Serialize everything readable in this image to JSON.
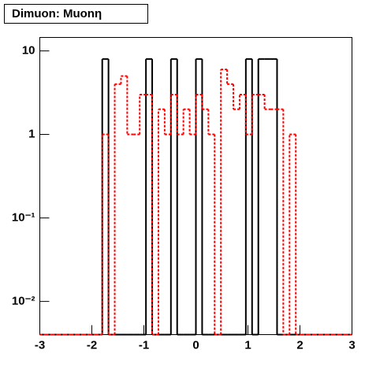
{
  "chart_data": {
    "type": "histogram",
    "title": "Dimuon: Muonη",
    "bins": [
      -3,
      -2.88,
      -2.76,
      -2.64,
      -2.52,
      -2.4,
      -2.28,
      -2.16,
      -2.04,
      -1.92,
      -1.8,
      -1.68,
      -1.56,
      -1.44,
      -1.32,
      -1.2,
      -1.08,
      -0.96,
      -0.84,
      -0.72,
      -0.6,
      -0.48,
      -0.36,
      -0.24,
      -0.12,
      0,
      0.12,
      0.24,
      0.36,
      0.48,
      0.6,
      0.72,
      0.84,
      0.96,
      1.08,
      1.2,
      1.32,
      1.44,
      1.56,
      1.68,
      1.8,
      1.92,
      2.04,
      2.16,
      2.28,
      2.4,
      2.52,
      2.64,
      2.76,
      2.88,
      3
    ],
    "series": [
      {
        "color": "#000000",
        "dash": false,
        "values": [
          0,
          0,
          0,
          0,
          0,
          0,
          0,
          0,
          0,
          0,
          8,
          0,
          0,
          0,
          0,
          0,
          0,
          8,
          0,
          0,
          0,
          8,
          0,
          0,
          0,
          8,
          0,
          0,
          0,
          0,
          0,
          0,
          0,
          8,
          0,
          8,
          8,
          8,
          0,
          0,
          0,
          0,
          0,
          0,
          0,
          0,
          0,
          0,
          0,
          0
        ]
      },
      {
        "color": "#ff0000",
        "dash": true,
        "values": [
          0,
          0,
          0,
          0,
          0,
          0,
          0,
          0,
          0,
          0,
          1,
          0,
          4,
          5,
          1,
          1,
          3,
          3,
          0,
          2,
          1,
          3,
          1,
          2,
          1,
          3,
          2,
          1,
          0,
          6,
          4,
          2,
          3,
          1,
          3,
          3,
          2,
          2,
          2,
          0,
          1,
          0,
          0,
          0,
          0,
          0,
          0,
          0,
          0,
          0
        ]
      }
    ],
    "xlim": [
      -3,
      3
    ],
    "xticks": [
      -3,
      -2,
      -1,
      0,
      1,
      2,
      3
    ],
    "ylim": [
      0.004,
      14.5
    ],
    "log_y": true,
    "yticks": [
      {
        "value": 0.01,
        "label": "10⁻²"
      },
      {
        "value": 0.1,
        "label": "10⁻¹"
      },
      1,
      10
    ]
  }
}
